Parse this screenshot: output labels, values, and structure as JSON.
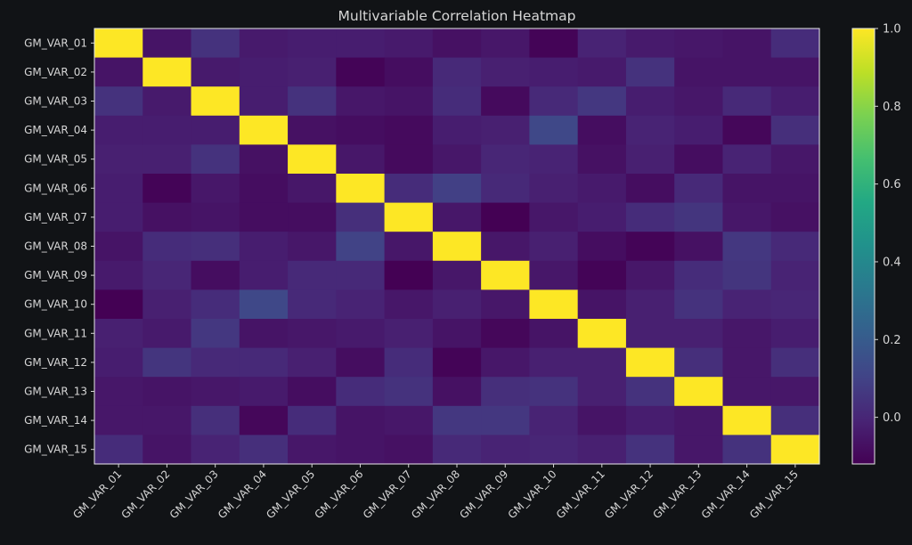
{
  "chart_data": {
    "type": "heatmap",
    "title": "Multivariable Correlation Heatmap",
    "xlabel": "",
    "ylabel": "",
    "categories": [
      "GM_VAR_01",
      "GM_VAR_02",
      "GM_VAR_03",
      "GM_VAR_04",
      "GM_VAR_05",
      "GM_VAR_06",
      "GM_VAR_07",
      "GM_VAR_08",
      "GM_VAR_09",
      "GM_VAR_10",
      "GM_VAR_11",
      "GM_VAR_12",
      "GM_VAR_13",
      "GM_VAR_14",
      "GM_VAR_15"
    ],
    "colorbar": {
      "min": -0.12,
      "max": 1.0,
      "ticks": [
        "0.0",
        "0.2",
        "0.4",
        "0.6",
        "0.8",
        "1.0"
      ],
      "tick_values": [
        0.0,
        0.2,
        0.4,
        0.6,
        0.8,
        1.0
      ],
      "colormap": "viridis"
    },
    "matrix": [
      [
        1.0,
        -0.06,
        0.04,
        -0.04,
        -0.03,
        -0.03,
        -0.04,
        -0.07,
        -0.05,
        -0.11,
        -0.01,
        -0.04,
        -0.05,
        -0.06,
        0.02
      ],
      [
        -0.06,
        1.0,
        -0.04,
        -0.03,
        -0.02,
        -0.11,
        -0.08,
        0.01,
        -0.02,
        -0.03,
        -0.04,
        0.04,
        -0.06,
        -0.06,
        -0.06
      ],
      [
        0.04,
        -0.04,
        1.0,
        -0.03,
        0.04,
        -0.05,
        -0.06,
        0.02,
        -0.09,
        0.01,
        0.06,
        -0.03,
        -0.05,
        0.01,
        -0.03
      ],
      [
        -0.03,
        -0.03,
        -0.03,
        1.0,
        -0.07,
        -0.08,
        -0.09,
        -0.03,
        -0.02,
        0.12,
        -0.08,
        -0.01,
        -0.03,
        -0.1,
        0.03
      ],
      [
        -0.02,
        -0.02,
        0.04,
        -0.07,
        1.0,
        -0.05,
        -0.09,
        -0.05,
        0.0,
        -0.01,
        -0.07,
        -0.02,
        -0.08,
        -0.01,
        -0.05
      ],
      [
        -0.03,
        -0.11,
        -0.05,
        -0.08,
        -0.05,
        1.0,
        0.02,
        0.09,
        0.01,
        -0.02,
        -0.04,
        -0.08,
        0.01,
        -0.06,
        -0.06
      ],
      [
        -0.03,
        -0.07,
        -0.06,
        -0.08,
        -0.08,
        0.03,
        1.0,
        -0.05,
        -0.12,
        -0.05,
        -0.03,
        0.02,
        0.05,
        -0.05,
        -0.07
      ],
      [
        -0.06,
        0.02,
        0.03,
        -0.03,
        -0.05,
        0.1,
        -0.05,
        1.0,
        -0.05,
        -0.02,
        -0.08,
        -0.11,
        -0.07,
        0.06,
        0.01
      ],
      [
        -0.04,
        0.0,
        -0.08,
        -0.03,
        0.01,
        0.01,
        -0.12,
        -0.05,
        1.0,
        -0.05,
        -0.11,
        -0.05,
        0.02,
        0.05,
        -0.01
      ],
      [
        -0.12,
        -0.02,
        0.02,
        0.12,
        0.01,
        -0.01,
        -0.05,
        -0.02,
        -0.05,
        1.0,
        -0.06,
        -0.02,
        0.04,
        -0.01,
        0.0
      ],
      [
        -0.02,
        -0.04,
        0.06,
        -0.06,
        -0.05,
        -0.04,
        -0.02,
        -0.06,
        -0.1,
        -0.06,
        1.0,
        -0.02,
        -0.02,
        -0.05,
        -0.03
      ],
      [
        -0.03,
        0.05,
        0.01,
        0.01,
        -0.02,
        -0.08,
        0.02,
        -0.11,
        -0.05,
        -0.02,
        -0.02,
        1.0,
        0.03,
        -0.05,
        0.03
      ],
      [
        -0.05,
        -0.06,
        -0.05,
        -0.04,
        -0.08,
        0.02,
        0.04,
        -0.07,
        0.03,
        0.04,
        -0.02,
        0.04,
        1.0,
        -0.05,
        -0.05
      ],
      [
        -0.05,
        -0.05,
        0.03,
        -0.1,
        0.02,
        -0.06,
        -0.05,
        0.06,
        0.06,
        -0.01,
        -0.06,
        -0.03,
        -0.05,
        1.0,
        0.03
      ],
      [
        0.02,
        -0.06,
        -0.01,
        0.03,
        -0.05,
        -0.06,
        -0.07,
        0.01,
        -0.01,
        0.0,
        -0.02,
        0.04,
        -0.05,
        0.04,
        1.0
      ]
    ]
  }
}
